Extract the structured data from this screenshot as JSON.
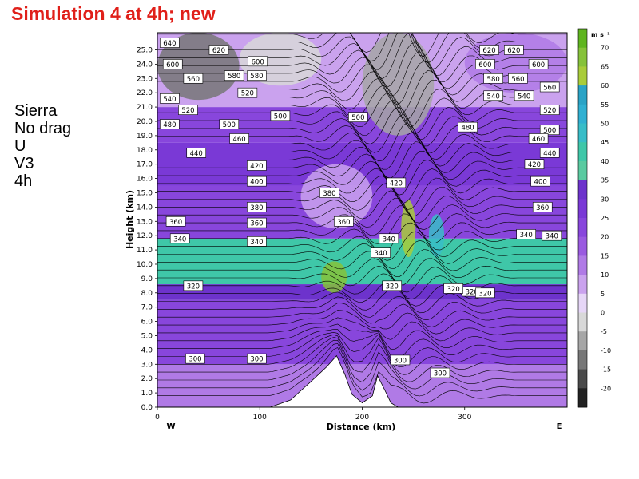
{
  "slide": {
    "title": "Simulation 4 at 4h; new",
    "notes": [
      "Sierra",
      "No drag",
      "U",
      "V3",
      "4h"
    ],
    "title_color": "#e0201a"
  },
  "chart_data": {
    "type": "heatmap",
    "title": "",
    "xlabel": "Distance (km)",
    "ylabel": "Height (km)",
    "xlim": [
      0,
      400
    ],
    "ylim": [
      0,
      26.2
    ],
    "x_ticks": [
      0,
      100,
      200,
      300
    ],
    "y_ticks": [
      "0.0",
      "1.0",
      "2.0",
      "3.0",
      "4.0",
      "5.0",
      "6.0",
      "7.0",
      "8.0",
      "9.0",
      "10.0",
      "11.0",
      "12.0",
      "13.0",
      "14.0",
      "15.0",
      "16.0",
      "17.0",
      "18.0",
      "19.0",
      "20.0",
      "21.0",
      "22.0",
      "23.0",
      "24.0",
      "25.0"
    ],
    "x_ends": {
      "left": "W",
      "right": "E"
    },
    "colorbar": {
      "units": "m s⁻¹",
      "labels": [
        "70",
        "65",
        "60",
        "55",
        "50",
        "45",
        "40",
        "35",
        "30",
        "25",
        "20",
        "15",
        "10",
        "5",
        "0",
        "-5",
        "-10",
        "-15",
        "-20"
      ],
      "colors": [
        "#5fb51f",
        "#86c23a",
        "#a9cc3a",
        "#2aa3c6",
        "#30b0d2",
        "#38bdc8",
        "#3fc7a8",
        "#5acaa0",
        "#6d33cc",
        "#7a39d6",
        "#8846dc",
        "#9a5ae0",
        "#b07ae6",
        "#caa2ee",
        "#e6d6f7",
        "#d8d8d8",
        "#a6a6a6",
        "#777777",
        "#4a4a4a",
        "#222222"
      ]
    },
    "terrain": {
      "x": [
        0,
        110,
        130,
        150,
        165,
        175,
        183,
        190,
        200,
        210,
        215,
        222,
        228,
        235,
        400
      ],
      "height": [
        0,
        0,
        0.5,
        1.8,
        2.8,
        3.6,
        2.3,
        0.9,
        0.3,
        0.8,
        2.2,
        1.2,
        0.3,
        0,
        0
      ]
    },
    "field_bands": [
      {
        "from": 0,
        "to": 3.0,
        "level": 10
      },
      {
        "from": 3.0,
        "to": 7.5,
        "level": 20
      },
      {
        "from": 7.5,
        "to": 8.6,
        "level": 30
      },
      {
        "from": 8.6,
        "to": 11.8,
        "level": 40
      },
      {
        "from": 11.8,
        "to": 15.5,
        "level": 20
      },
      {
        "from": 15.5,
        "to": 18.5,
        "level": 25
      },
      {
        "from": 18.5,
        "to": 21.0,
        "level": 20
      },
      {
        "from": 21.0,
        "to": 26.2,
        "level": 5
      }
    ],
    "field_patches": [
      {
        "x": [
          0,
          80
        ],
        "y": [
          21.5,
          26.2
        ],
        "level": -15
      },
      {
        "x": [
          80,
          160
        ],
        "y": [
          22.5,
          26.2
        ],
        "level": -5
      },
      {
        "x": [
          200,
          270
        ],
        "y": [
          19.0,
          26.2
        ],
        "level": -10
      },
      {
        "x": [
          140,
          210
        ],
        "y": [
          12.5,
          17.0
        ],
        "level": 5
      },
      {
        "x": [
          160,
          185
        ],
        "y": [
          8.0,
          10.2
        ],
        "level": 65
      },
      {
        "x": [
          238,
          252
        ],
        "y": [
          10.5,
          14.5
        ],
        "level": 60
      },
      {
        "x": [
          265,
          280
        ],
        "y": [
          10.5,
          13.5
        ],
        "level": 45
      },
      {
        "x": [
          300,
          400
        ],
        "y": [
          22.0,
          26.2
        ],
        "level": 10
      }
    ],
    "contour_labels": [
      {
        "text": "640",
        "x": 12,
        "y": 25.5
      },
      {
        "text": "620",
        "x": 60,
        "y": 25.0
      },
      {
        "text": "600",
        "x": 15,
        "y": 24.0
      },
      {
        "text": "600",
        "x": 98,
        "y": 24.2
      },
      {
        "text": "560",
        "x": 35,
        "y": 23.0
      },
      {
        "text": "580",
        "x": 75,
        "y": 23.2
      },
      {
        "text": "580",
        "x": 97,
        "y": 23.2
      },
      {
        "text": "520",
        "x": 88,
        "y": 22.0
      },
      {
        "text": "540",
        "x": 12,
        "y": 21.6
      },
      {
        "text": "520",
        "x": 30,
        "y": 20.8
      },
      {
        "text": "500",
        "x": 120,
        "y": 20.4
      },
      {
        "text": "480",
        "x": 12,
        "y": 19.8
      },
      {
        "text": "500",
        "x": 70,
        "y": 19.8
      },
      {
        "text": "460",
        "x": 80,
        "y": 18.8
      },
      {
        "text": "440",
        "x": 38,
        "y": 17.8
      },
      {
        "text": "420",
        "x": 97,
        "y": 16.9
      },
      {
        "text": "400",
        "x": 97,
        "y": 15.8
      },
      {
        "text": "380",
        "x": 97,
        "y": 14.0
      },
      {
        "text": "360",
        "x": 18,
        "y": 13.0
      },
      {
        "text": "360",
        "x": 97,
        "y": 12.9
      },
      {
        "text": "340",
        "x": 22,
        "y": 11.8
      },
      {
        "text": "340",
        "x": 97,
        "y": 11.6
      },
      {
        "text": "320",
        "x": 35,
        "y": 8.5
      },
      {
        "text": "300",
        "x": 37,
        "y": 3.4
      },
      {
        "text": "300",
        "x": 97,
        "y": 3.4
      },
      {
        "text": "500",
        "x": 196,
        "y": 20.3
      },
      {
        "text": "380",
        "x": 168,
        "y": 15.0
      },
      {
        "text": "360",
        "x": 182,
        "y": 13.0
      },
      {
        "text": "420",
        "x": 233,
        "y": 15.7
      },
      {
        "text": "340",
        "x": 226,
        "y": 11.8
      },
      {
        "text": "340",
        "x": 218,
        "y": 10.8
      },
      {
        "text": "320",
        "x": 229,
        "y": 8.5
      },
      {
        "text": "320",
        "x": 307,
        "y": 8.1
      },
      {
        "text": "320",
        "x": 289,
        "y": 8.3
      },
      {
        "text": "300",
        "x": 237,
        "y": 3.3
      },
      {
        "text": "300",
        "x": 276,
        "y": 2.4
      },
      {
        "text": "480",
        "x": 303,
        "y": 19.6
      },
      {
        "text": "620",
        "x": 324,
        "y": 25.0
      },
      {
        "text": "620",
        "x": 348,
        "y": 25.0
      },
      {
        "text": "600",
        "x": 320,
        "y": 24.0
      },
      {
        "text": "600",
        "x": 372,
        "y": 24.0
      },
      {
        "text": "580",
        "x": 328,
        "y": 23.0
      },
      {
        "text": "560",
        "x": 352,
        "y": 23.0
      },
      {
        "text": "560",
        "x": 383,
        "y": 22.4
      },
      {
        "text": "540",
        "x": 328,
        "y": 21.8
      },
      {
        "text": "540",
        "x": 358,
        "y": 21.8
      },
      {
        "text": "520",
        "x": 383,
        "y": 20.8
      },
      {
        "text": "500",
        "x": 383,
        "y": 19.4
      },
      {
        "text": "460",
        "x": 372,
        "y": 18.8
      },
      {
        "text": "440",
        "x": 383,
        "y": 17.8
      },
      {
        "text": "420",
        "x": 368,
        "y": 17.0
      },
      {
        "text": "400",
        "x": 374,
        "y": 15.8
      },
      {
        "text": "360",
        "x": 376,
        "y": 14.0
      },
      {
        "text": "340",
        "x": 360,
        "y": 12.1
      },
      {
        "text": "340",
        "x": 385,
        "y": 12.0
      },
      {
        "text": "320",
        "x": 320,
        "y": 8.0
      }
    ]
  }
}
